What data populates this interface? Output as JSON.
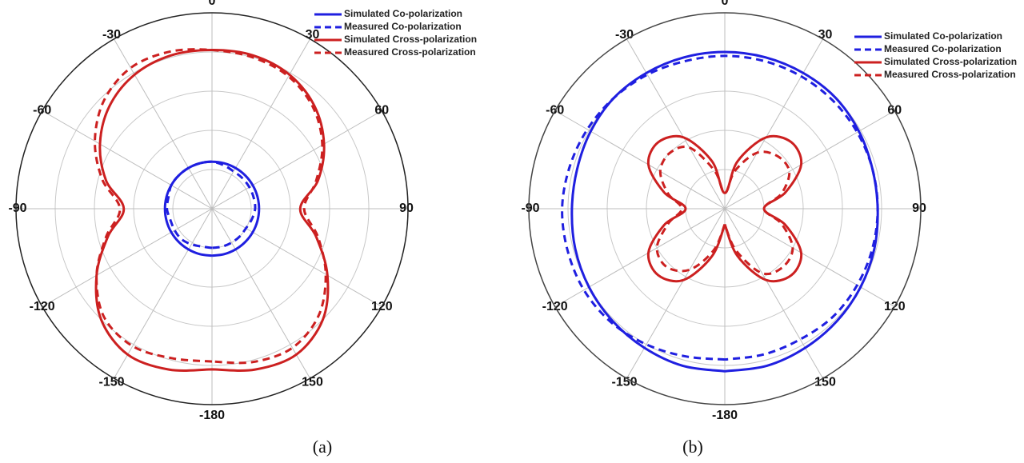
{
  "chart_data": [
    {
      "type": "polar",
      "caption": "(a)",
      "legend": "upper right",
      "theta": [
        -180,
        -165,
        -150,
        -135,
        -120,
        -105,
        -90,
        -75,
        -60,
        -45,
        -30,
        -15,
        0,
        15,
        30,
        45,
        60,
        75,
        90,
        105,
        120,
        135,
        150,
        165,
        180
      ],
      "rlim": [
        0,
        1
      ],
      "rticks": [
        0.2,
        0.4,
        0.6,
        0.8
      ],
      "grid": true,
      "thetaticks": [
        0,
        30,
        60,
        90,
        120,
        150,
        -180,
        -150,
        -120,
        -90,
        -60,
        -30
      ],
      "series": [
        {
          "name": "Simulated Co-polarization",
          "color": "#1f1fe0",
          "style": "solid",
          "values": [
            0.24,
            0.24,
            0.24,
            0.24,
            0.24,
            0.24,
            0.24,
            0.24,
            0.24,
            0.24,
            0.24,
            0.24,
            0.24,
            0.24,
            0.24,
            0.24,
            0.24,
            0.24,
            0.24,
            0.24,
            0.24,
            0.24,
            0.24,
            0.24,
            0.24
          ]
        },
        {
          "name": "Measured Co-polarization",
          "color": "#1f1fe0",
          "style": "dashed",
          "values": [
            0.2,
            0.2,
            0.21,
            0.22,
            0.22,
            0.22,
            0.23,
            0.23,
            0.24,
            0.24,
            0.24,
            0.24,
            0.24,
            0.23,
            0.22,
            0.22,
            0.22,
            0.22,
            0.22,
            0.21,
            0.2,
            0.2,
            0.2,
            0.2,
            0.2
          ]
        },
        {
          "name": "Simulated Cross-polarization",
          "color": "#cc2020",
          "style": "solid",
          "values": [
            0.82,
            0.85,
            0.86,
            0.8,
            0.68,
            0.55,
            0.45,
            0.56,
            0.66,
            0.74,
            0.79,
            0.81,
            0.81,
            0.81,
            0.79,
            0.74,
            0.66,
            0.56,
            0.45,
            0.55,
            0.68,
            0.8,
            0.86,
            0.85,
            0.82
          ]
        },
        {
          "name": "Measured Cross-polarization",
          "color": "#cc2020",
          "style": "dashed",
          "values": [
            0.78,
            0.79,
            0.81,
            0.78,
            0.68,
            0.56,
            0.47,
            0.58,
            0.69,
            0.78,
            0.83,
            0.83,
            0.81,
            0.8,
            0.78,
            0.73,
            0.65,
            0.55,
            0.47,
            0.56,
            0.67,
            0.77,
            0.82,
            0.81,
            0.78
          ]
        }
      ]
    },
    {
      "type": "polar",
      "caption": "(b)",
      "legend": "upper right",
      "theta": [
        -180,
        -165,
        -150,
        -135,
        -120,
        -105,
        -90,
        -75,
        -60,
        -45,
        -30,
        -15,
        0,
        15,
        30,
        45,
        60,
        75,
        90,
        105,
        120,
        135,
        150,
        165,
        180
      ],
      "rlim": [
        0,
        1
      ],
      "rticks": [
        0.2,
        0.4,
        0.6,
        0.8
      ],
      "grid": true,
      "thetaticks": [
        0,
        30,
        60,
        90,
        120,
        150,
        -180,
        -150,
        -120,
        -90,
        -60,
        -30
      ],
      "series": [
        {
          "name": "Simulated Co-polarization",
          "color": "#1f1fe0",
          "style": "solid",
          "values": [
            0.83,
            0.83,
            0.82,
            0.81,
            0.8,
            0.79,
            0.78,
            0.78,
            0.79,
            0.8,
            0.8,
            0.8,
            0.8,
            0.8,
            0.8,
            0.8,
            0.79,
            0.78,
            0.78,
            0.79,
            0.8,
            0.81,
            0.82,
            0.83,
            0.83
          ]
        },
        {
          "name": "Measured Co-polarization",
          "color": "#1f1fe0",
          "style": "dashed",
          "values": [
            0.77,
            0.78,
            0.8,
            0.82,
            0.83,
            0.83,
            0.83,
            0.82,
            0.81,
            0.8,
            0.79,
            0.78,
            0.78,
            0.78,
            0.78,
            0.78,
            0.78,
            0.78,
            0.78,
            0.78,
            0.78,
            0.78,
            0.77,
            0.77,
            0.77
          ]
        },
        {
          "name": "Simulated Cross-polarization",
          "color": "#cc2020",
          "style": "solid",
          "values": [
            0.08,
            0.25,
            0.42,
            0.48,
            0.45,
            0.32,
            0.2,
            0.32,
            0.45,
            0.48,
            0.42,
            0.25,
            0.08,
            0.25,
            0.42,
            0.48,
            0.45,
            0.32,
            0.2,
            0.32,
            0.45,
            0.48,
            0.42,
            0.25,
            0.08
          ]
        },
        {
          "name": "Measured Cross-polarization",
          "color": "#cc2020",
          "style": "dashed",
          "values": [
            0.08,
            0.22,
            0.36,
            0.42,
            0.4,
            0.3,
            0.22,
            0.3,
            0.38,
            0.4,
            0.36,
            0.2,
            0.08,
            0.2,
            0.33,
            0.38,
            0.38,
            0.3,
            0.2,
            0.3,
            0.4,
            0.42,
            0.38,
            0.22,
            0.08
          ]
        }
      ]
    }
  ]
}
